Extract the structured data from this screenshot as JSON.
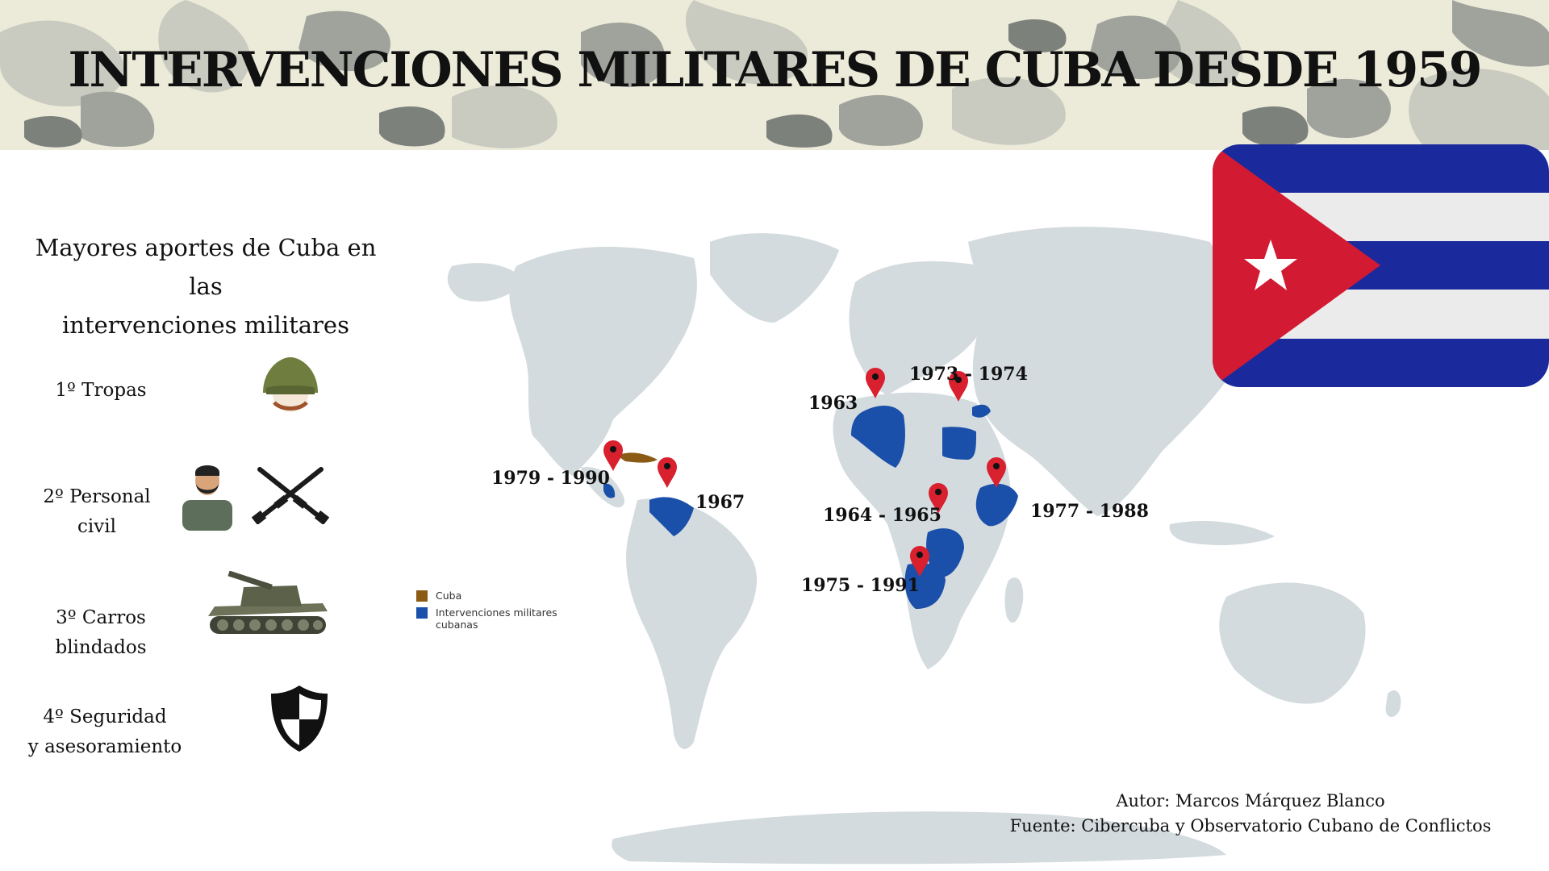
{
  "title": "INTERVENCIONES MILITARES DE CUBA DESDE 1959",
  "contributions": {
    "heading_line1": "Mayores aportes de Cuba en las",
    "heading_line2": "intervenciones militares",
    "items": [
      {
        "line1": "1º  Tropas",
        "line2": "",
        "icons": [
          "helmet-icon"
        ]
      },
      {
        "line1": "2º Personal",
        "line2": "civil",
        "icons": [
          "civilian-person-icon",
          "crossed-rifles-icon"
        ]
      },
      {
        "line1": "3º Carros",
        "line2": "blindados",
        "icons": [
          "tank-icon"
        ]
      },
      {
        "line1": "4º Seguridad",
        "line2": "y asesoramiento",
        "icons": [
          "shield-icon"
        ]
      }
    ]
  },
  "map": {
    "interventions": [
      {
        "years": "1963",
        "place_color": "#1a4faa"
      },
      {
        "years": "1973 - 1974",
        "place_color": "#1a4faa"
      },
      {
        "years": "1979 - 1990",
        "place_color": "#1a4faa"
      },
      {
        "years": "1967",
        "place_color": "#1a4faa"
      },
      {
        "years": "1964 - 1965",
        "place_color": "#1a4faa"
      },
      {
        "years": "1977 - 1988",
        "place_color": "#1a4faa"
      },
      {
        "years": "1975 - 1991",
        "place_color": "#1a4faa"
      }
    ],
    "legend": [
      {
        "label": "Cuba",
        "color": "#8b5a14"
      },
      {
        "label": "Intervenciones militares cubanas",
        "color": "#1a4faa"
      }
    ],
    "land_color": "#d3dbde",
    "marker_color": "#d8202e"
  },
  "flag": {
    "blue": "#1a2a9c",
    "white": "#ebebeb",
    "red": "#d21a32",
    "star": "#ffffff"
  },
  "credits": {
    "author": "Autor: Marcos Márquez Blanco",
    "source": "Fuente: Cibercuba y Observatorio Cubano de Conflictos"
  }
}
